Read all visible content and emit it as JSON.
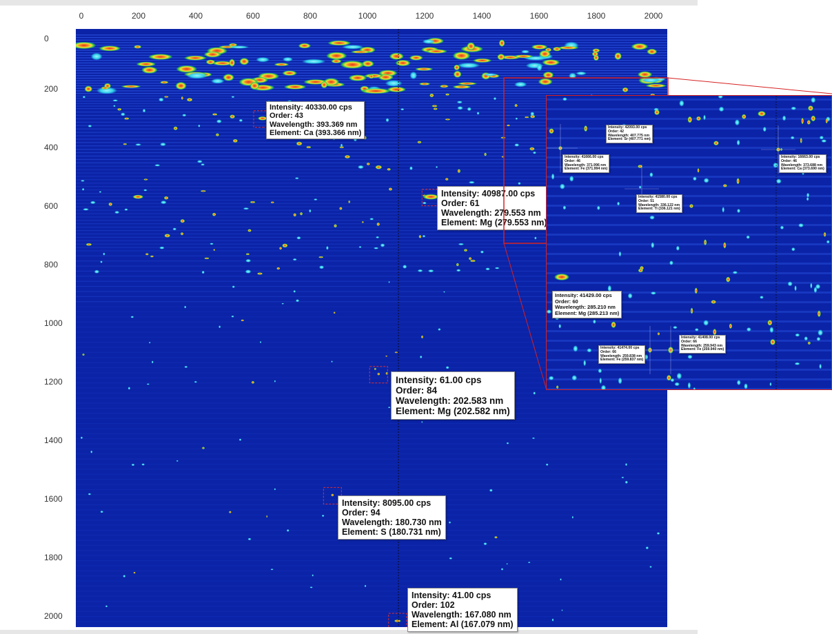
{
  "chart_data": {
    "type": "heatmap",
    "title": "",
    "xlabel": "",
    "ylabel": "",
    "xlim": [
      -20,
      2070
    ],
    "ylim": [
      2040,
      -80
    ],
    "x_ticks": [
      "0",
      "200",
      "400",
      "600",
      "800",
      "1000",
      "1200",
      "1400",
      "1600",
      "1800",
      "2000"
    ],
    "y_ticks": [
      "0",
      "200",
      "400",
      "600",
      "800",
      "1000",
      "1200",
      "1400",
      "1600",
      "1800",
      "2000"
    ],
    "cursor_x": 1120,
    "colormap": [
      "#0b23a7",
      "#1e56e0",
      "#2fd3ea",
      "#35c84a",
      "#f0e13a",
      "#f08a24",
      "#e8321e"
    ],
    "highlighted_peaks": [
      {
        "x": 640,
        "y": 237,
        "intensity": "Intensity: 40330.00 cps",
        "order": "Order: 43",
        "wavelength": "Wavelength: 393.369 nm",
        "element": "Element: Ca (393.366 nm)"
      },
      {
        "x": 1235,
        "y": 515,
        "intensity": "Intensity: 40987.00 cps",
        "order": "Order: 61",
        "wavelength": "Wavelength: 279.553 nm",
        "element": "Element: Mg (279.553 nm)"
      },
      {
        "x": 1050,
        "y": 1143,
        "intensity": "Intensity: 61.00 cps",
        "order": "Order: 84",
        "wavelength": "Wavelength: 202.583 nm",
        "element": "Element: Mg (202.582 nm)"
      },
      {
        "x": 887,
        "y": 1572,
        "intensity": "Intensity: 8095.00 cps",
        "order": "Order: 94",
        "wavelength": "Wavelength: 180.730 nm",
        "element": "Element: S (180.731 nm)"
      },
      {
        "x": 1117,
        "y": 2018,
        "intensity": "Intensity: 41.00 cps",
        "order": "Order: 102",
        "wavelength": "Wavelength: 167.080 nm",
        "element": "Element: Al (167.079 nm)"
      }
    ],
    "inset_peaks": [
      {
        "intensity": "Intensity: 42093.00 cps",
        "order": "Order: 42",
        "wavelength": "Wavelength: 407.775 nm",
        "element": "Element: Sr (407.771 nm)"
      },
      {
        "intensity": "Intensity: 41666.00 cps",
        "order": "Order: 46",
        "wavelength": "Wavelength: 371.996 nm",
        "element": "Element: Fe (371.994 nm)"
      },
      {
        "intensity": "Intensity: 16663.00 cps",
        "order": "Order: 46",
        "wavelength": "Wavelength: 373.688 nm",
        "element": "Element: Ca (373.690 nm)"
      },
      {
        "intensity": "Intensity: 41580.00 cps",
        "order": "Order: 51",
        "wavelength": "Wavelength: 336.122 nm",
        "element": "Element: Ti (336.121 nm)"
      },
      {
        "intensity": "Intensity: 41429.00 cps",
        "order": "Order: 60",
        "wavelength": "Wavelength: 285.210 nm",
        "element": "Element: Mg (285.213 nm)"
      },
      {
        "intensity": "Intensity: 41474.00 cps",
        "order": "Order: 66",
        "wavelength": "Wavelength: 259.838 nm",
        "element": "Element: Fe (259.837 nm)"
      },
      {
        "intensity": "Intensity: 41408.00 cps",
        "order": "Order: 66",
        "wavelength": "Wavelength: 259.943 nm",
        "element": "Element: Fe (259.940 nm)"
      }
    ]
  }
}
